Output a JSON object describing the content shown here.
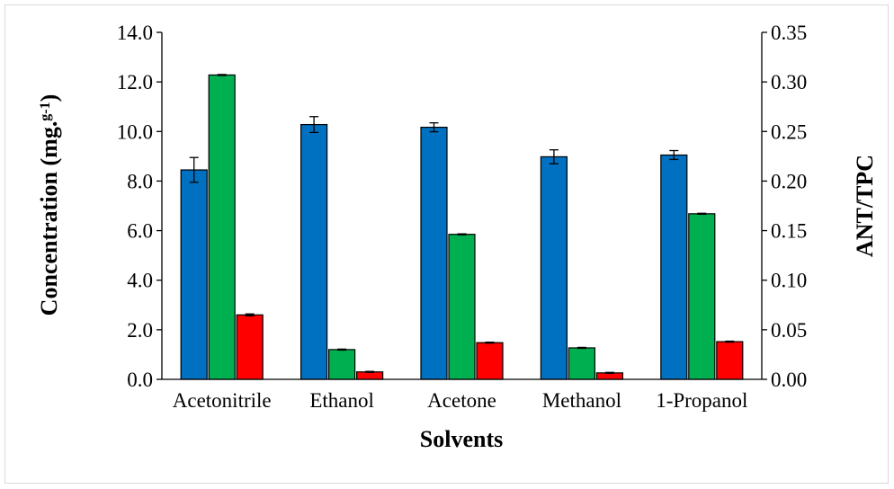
{
  "chart_data": {
    "type": "bar",
    "categories": [
      "Acetonitrile",
      "Ethanol",
      "Acetone",
      "Methanol",
      "1-Propanol"
    ],
    "series": [
      {
        "axis": "left",
        "color": "#0070c0",
        "values": [
          8.45,
          10.28,
          10.17,
          8.98,
          9.05
        ],
        "errors": [
          0.5,
          0.32,
          0.18,
          0.28,
          0.18
        ]
      },
      {
        "axis": "left",
        "color": "#00b050",
        "values": [
          12.28,
          1.2,
          5.85,
          1.27,
          6.68
        ],
        "errors": [
          0.02,
          0.02,
          0.02,
          0.02,
          0.02
        ]
      },
      {
        "axis": "right",
        "color": "#ff0000",
        "values": [
          0.065,
          0.0075,
          0.037,
          0.0065,
          0.038
        ],
        "errors": [
          0.001,
          0.0005,
          0.0005,
          0.0005,
          0.0005
        ]
      }
    ],
    "y_left": {
      "title_main": "Concentration (mg.",
      "title_sup": "g-1",
      "title_end": ")",
      "ylim": [
        0,
        14
      ],
      "ticks": [
        "0.0",
        "2.0",
        "4.0",
        "6.0",
        "8.0",
        "10.0",
        "12.0",
        "14.0"
      ]
    },
    "y_right": {
      "title": "ANT/TPC",
      "ylim": [
        0,
        0.35
      ],
      "ticks": [
        "0.00",
        "0.05",
        "0.10",
        "0.15",
        "0.20",
        "0.25",
        "0.30",
        "0.35"
      ]
    },
    "xlabel": "Solvents",
    "grid": false,
    "legend": "none"
  }
}
